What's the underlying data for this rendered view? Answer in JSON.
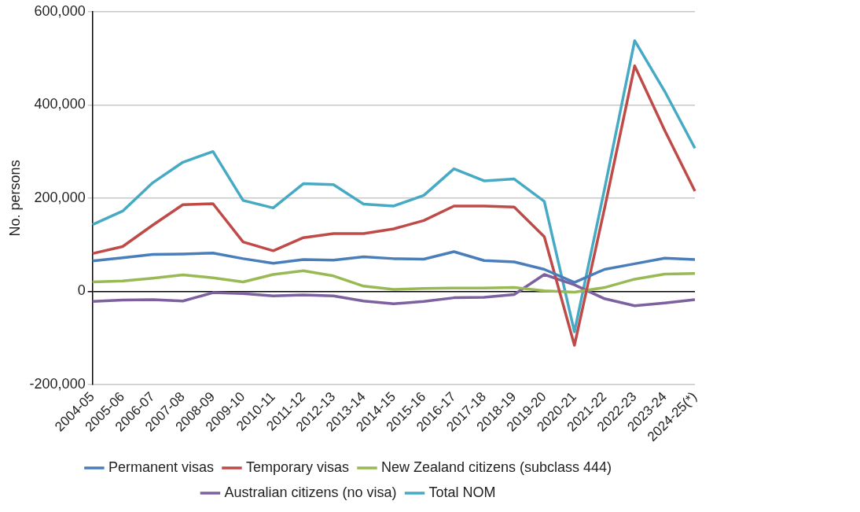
{
  "chart_data": {
    "type": "line",
    "ylabel": "No. persons",
    "categories": [
      "2004-05",
      "2005-06",
      "2006-07",
      "2007-08",
      "2008-09",
      "2009-10",
      "2010-11",
      "2011-12",
      "2012-13",
      "2013-14",
      "2014-15",
      "2015-16",
      "2016-17",
      "2017-18",
      "2018-19",
      "2019-20",
      "2020-21",
      "2021-22",
      "2022-23",
      "2023-24",
      "2024-25(*)"
    ],
    "series": [
      {
        "name": "Permanent visas",
        "color": "#4a7ebb",
        "values": [
          65000,
          72000,
          79000,
          80000,
          82000,
          70000,
          60000,
          68000,
          67000,
          74000,
          70000,
          69000,
          85000,
          66000,
          63000,
          47000,
          19000,
          47000,
          59000,
          71000,
          68000
        ]
      },
      {
        "name": "Temporary visas",
        "color": "#be4b48",
        "values": [
          81000,
          96000,
          142000,
          186000,
          188000,
          106000,
          87000,
          115000,
          124000,
          124000,
          134000,
          152000,
          183000,
          183000,
          181000,
          117000,
          -116000,
          178000,
          484000,
          345000,
          215000
        ]
      },
      {
        "name": "New Zealand citizens (subclass 444)",
        "color": "#98b954",
        "values": [
          20000,
          22000,
          28000,
          35000,
          29000,
          20000,
          36000,
          44000,
          33000,
          11000,
          4000,
          6000,
          7000,
          7000,
          8000,
          1000,
          -2000,
          8000,
          26000,
          37000,
          38000
        ]
      },
      {
        "name": "Australian citizens (no visa)",
        "color": "#7d60a0",
        "values": [
          -22000,
          -19000,
          -18000,
          -21000,
          -3000,
          -5000,
          -10000,
          -8000,
          -10000,
          -21000,
          -27000,
          -22000,
          -14000,
          -13000,
          -7000,
          36000,
          14000,
          -16000,
          -31000,
          -25000,
          -18000
        ]
      },
      {
        "name": "Total NOM",
        "color": "#46aac5",
        "values": [
          143000,
          172000,
          233000,
          277000,
          300000,
          195000,
          179000,
          231000,
          229000,
          187000,
          183000,
          206000,
          263000,
          237000,
          241000,
          193000,
          -87000,
          220000,
          538000,
          429000,
          307000
        ]
      }
    ],
    "ylim": [
      -200000,
      600000
    ],
    "yticks": [
      {
        "value": -200000,
        "label": "-200,000"
      },
      {
        "value": 0,
        "label": "0"
      },
      {
        "value": 200000,
        "label": "200,000"
      },
      {
        "value": 400000,
        "label": "400,000"
      },
      {
        "value": 600000,
        "label": "600,000"
      }
    ],
    "grid": "y",
    "legend": "bottom",
    "marker": "none",
    "line_style": "solid"
  }
}
